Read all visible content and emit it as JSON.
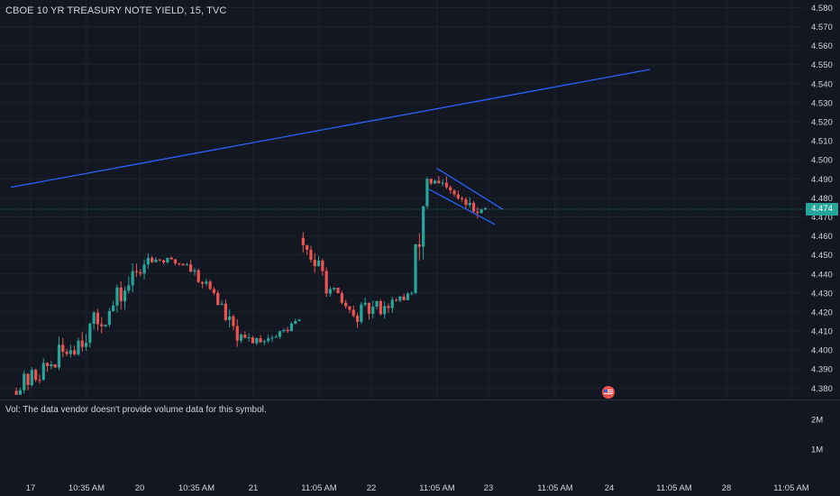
{
  "header": {
    "title": "CBOE 10 YR TREASURY NOTE YIELD, 15, TVC"
  },
  "volume": {
    "note": "Vol: The data vendor doesn't provide volume data for this symbol."
  },
  "colors": {
    "background": "#131722",
    "up": "#26a69a",
    "down": "#ef5350",
    "trendline": "#2962ff",
    "grid": "#1e222d",
    "text": "#d1d4dc"
  },
  "icons": {
    "event_marker": "us-flag-icon"
  },
  "chart_data": {
    "type": "candlestick",
    "title": "CBOE 10 YR TREASURY NOTE YIELD, 15, TVC",
    "ylim": [
      4.374,
      4.584
    ],
    "y_ticks": [
      "4.580",
      "4.570",
      "4.560",
      "4.550",
      "4.540",
      "4.530",
      "4.520",
      "4.510",
      "4.500",
      "4.490",
      "4.480",
      "4.470",
      "4.460",
      "4.450",
      "4.440",
      "4.430",
      "4.420",
      "4.410",
      "4.400",
      "4.390",
      "4.380"
    ],
    "x_ticks": [
      "17",
      "10:35 AM",
      "20",
      "10:35 AM",
      "21",
      "11:05 AM",
      "22",
      "11:05 AM",
      "23",
      "11:05 AM",
      "24",
      "11:05 AM",
      "28",
      "11:05 AM"
    ],
    "last_price": "4.474",
    "volume_ticks": [
      "2M",
      "1M"
    ],
    "bar_slots": 157,
    "segments": [
      {
        "session": "17",
        "start_slot": 0,
        "end_slot": 10,
        "open": 4.3785,
        "close": 4.3925,
        "high": 4.4055,
        "low": 4.3765
      },
      {
        "session": "17-20",
        "start_slot": 10,
        "end_slot": 25,
        "open": 4.3925,
        "close": 4.4205,
        "high": 4.4275,
        "low": 4.3895
      },
      {
        "session": "20",
        "start_slot": 25,
        "end_slot": 35,
        "open": 4.4205,
        "close": 4.4485,
        "high": 4.456,
        "low": 4.416
      },
      {
        "session": "20",
        "start_slot": 35,
        "end_slot": 45,
        "open": 4.4485,
        "close": 4.445,
        "high": 4.4515,
        "low": 4.44
      },
      {
        "session": "20-21",
        "start_slot": 45,
        "end_slot": 52,
        "open": 4.445,
        "close": 4.43,
        "high": 4.448,
        "low": 4.4265
      },
      {
        "session": "21",
        "start_slot": 52,
        "end_slot": 58,
        "open": 4.43,
        "close": 4.405,
        "high": 4.432,
        "low": 4.3985
      },
      {
        "session": "21",
        "start_slot": 58,
        "end_slot": 68,
        "open": 4.405,
        "close": 4.407,
        "high": 4.4165,
        "low": 4.3995
      },
      {
        "session": "21",
        "start_slot": 68,
        "end_slot": 74,
        "open": 4.407,
        "close": 4.416,
        "high": 4.4185,
        "low": 4.4025
      },
      {
        "session": "22",
        "start_slot": 74,
        "end_slot": 82,
        "open": 4.459,
        "close": 4.432,
        "high": 4.462,
        "low": 4.428
      },
      {
        "session": "22",
        "start_slot": 82,
        "end_slot": 88,
        "open": 4.432,
        "close": 4.418,
        "high": 4.433,
        "low": 4.414
      },
      {
        "session": "22-23",
        "start_slot": 88,
        "end_slot": 99,
        "open": 4.418,
        "close": 4.426,
        "high": 4.437,
        "low": 4.41
      },
      {
        "session": "23",
        "start_slot": 99,
        "end_slot": 103,
        "open": 4.426,
        "close": 4.43,
        "high": 4.434,
        "low": 4.415
      },
      {
        "session": "23",
        "start_slot": 103,
        "end_slot": 107,
        "open": 4.43,
        "close": 4.49,
        "high": 4.495,
        "low": 4.425
      },
      {
        "session": "23",
        "start_slot": 107,
        "end_slot": 120,
        "open": 4.49,
        "close": 4.472,
        "high": 4.496,
        "low": 4.469
      },
      {
        "session": "23",
        "start_slot": 120,
        "end_slot": 122,
        "open": 4.472,
        "close": 4.4745,
        "high": 4.476,
        "low": 4.47
      }
    ],
    "trendlines": [
      {
        "name": "",
        "x1_slot": -1,
        "y1": 4.4855,
        "x2_slot": 164,
        "y2": 4.5475
      },
      {
        "name": "",
        "x1_slot": 109,
        "y1": 4.4955,
        "x2_slot": 126,
        "y2": 4.474
      },
      {
        "name": "",
        "x1_slot": 107,
        "y1": 4.4845,
        "x2_slot": 124,
        "y2": 4.466
      }
    ],
    "event_marker_slot": 123
  }
}
